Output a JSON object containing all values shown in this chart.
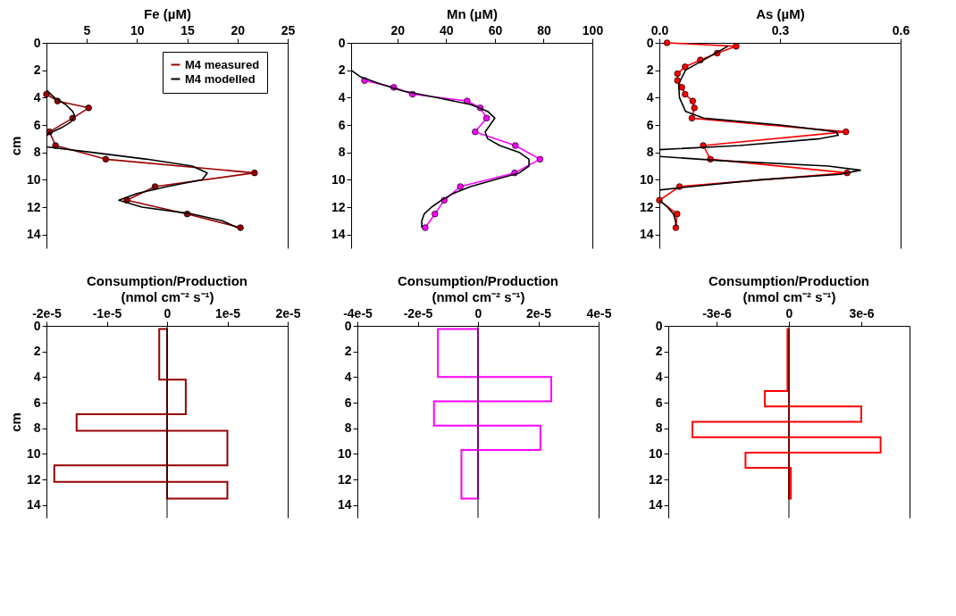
{
  "chart_data": [
    {
      "type": "line",
      "xlabel": "Fe (µM)",
      "ylabel": "cm",
      "xlim": [
        1,
        25
      ],
      "xticks": [
        5,
        10,
        15,
        20,
        25
      ],
      "ylim": [
        15,
        0
      ],
      "yticks": [
        0,
        2,
        4,
        6,
        8,
        10,
        12,
        14
      ],
      "grid": false,
      "legend": "top right",
      "series": [
        {
          "name": "M4 measured",
          "color": "#990000",
          "marker": "circle",
          "x": [
            1.0,
            2.1,
            5.2,
            3.6,
            1.3,
            1.9,
            6.9,
            21.7,
            11.8,
            9.0,
            15.0,
            20.3
          ],
          "values": [
            3.75,
            4.25,
            4.75,
            5.5,
            6.5,
            7.5,
            8.5,
            9.5,
            10.5,
            11.5,
            12.5,
            13.5
          ]
        },
        {
          "name": "M4 modelled",
          "color": "#000000",
          "marker": "none",
          "x": [
            1.0,
            1.8,
            2.9,
            3.6,
            3.8,
            3.4,
            2.5,
            1.3,
            1.0,
            null,
            1.0,
            5.5,
            11,
            15.5,
            17.0,
            16.5,
            13.0,
            10.0,
            8.2,
            10.5,
            15.5,
            18.5,
            20.0
          ],
          "values": [
            3.45,
            4.0,
            4.5,
            5.0,
            5.3,
            5.8,
            6.2,
            6.6,
            6.8,
            null,
            7.6,
            8.0,
            8.5,
            9.0,
            9.5,
            10.0,
            10.5,
            11.0,
            11.5,
            12.0,
            12.5,
            13.0,
            13.5
          ]
        }
      ]
    },
    {
      "type": "line",
      "xlabel": "Mn (µM)",
      "xlim": [
        1,
        100
      ],
      "xticks": [
        20,
        40,
        60,
        80,
        100
      ],
      "ylim": [
        15,
        0
      ],
      "yticks": [
        0,
        2,
        4,
        6,
        8,
        10,
        12,
        14
      ],
      "grid": false,
      "series": [
        {
          "color": "#ff00ff",
          "marker": "circle",
          "x": [
            6.5,
            18.5,
            26.2,
            48.6,
            54,
            56.6,
            51.9,
            68.4,
            78.5,
            68.1,
            45.8,
            39.2,
            35.4,
            31.4
          ],
          "values": [
            2.75,
            3.25,
            3.75,
            4.25,
            4.75,
            5.5,
            6.5,
            7.5,
            8.5,
            9.5,
            10.5,
            11.5,
            12.5,
            13.5
          ]
        },
        {
          "color": "#000000",
          "marker": "none",
          "x": [
            1,
            5,
            13,
            22,
            36,
            50,
            57,
            60,
            58,
            56,
            57,
            62,
            70,
            74,
            74,
            70,
            60,
            50,
            43,
            38,
            34,
            31,
            30,
            30
          ],
          "values": [
            2.0,
            2.5,
            3.0,
            3.5,
            4.0,
            4.5,
            5.0,
            5.5,
            6.0,
            6.5,
            7.0,
            7.5,
            8.0,
            8.5,
            9.0,
            9.5,
            10.0,
            10.5,
            11.0,
            11.5,
            12.0,
            12.5,
            13.0,
            13.5
          ]
        }
      ]
    },
    {
      "type": "line",
      "xlabel": "As (µM)",
      "xlim": [
        0,
        0.6
      ],
      "xticks": [
        {
          "value": 0,
          "label": "0.0"
        },
        {
          "value": 0.3,
          "label": "0.3"
        },
        {
          "value": 0.6,
          "label": "0.6"
        }
      ],
      "ylim": [
        15,
        0
      ],
      "yticks": [
        0,
        2,
        4,
        6,
        8,
        10,
        12,
        14
      ],
      "grid": false,
      "series": [
        {
          "color": "#ff0000",
          "marker": "circle",
          "x": [
            0.019,
            0.191,
            0.144,
            0.102,
            0.064,
            0.045,
            0.045,
            0.056,
            0.064,
            0.083,
            0.087,
            0.081,
            0.464,
            0.109,
            0.127,
            0.467,
            0.05,
            0.0,
            0.044,
            0.041
          ],
          "values": [
            0,
            0.25,
            0.75,
            1.25,
            1.75,
            2.25,
            2.75,
            3.25,
            3.75,
            4.25,
            4.75,
            5.5,
            6.5,
            7.5,
            8.5,
            9.5,
            10.5,
            11.5,
            12.5,
            13.5
          ]
        },
        {
          "color": "#000000",
          "marker": "none",
          "x": [
            0.17,
            0.14,
            0.11,
            0.065,
            0.048,
            0.05,
            0.065,
            0.11,
            0.3,
            0.44,
            0.445,
            0.4,
            0.2,
            0.0,
            null,
            0.0,
            0.15,
            0.42,
            0.5,
            0.45,
            0.25,
            0.08,
            0.0,
            null,
            0.0,
            0.02,
            0.035,
            0.04,
            0.042
          ],
          "values": [
            0.25,
            0.75,
            1.25,
            2.0,
            3.0,
            4.0,
            5.0,
            5.5,
            6.0,
            6.5,
            6.75,
            7.0,
            7.5,
            7.8,
            null,
            8.3,
            8.6,
            9.0,
            9.3,
            9.6,
            10.0,
            10.5,
            10.75,
            null,
            11.5,
            12.0,
            12.5,
            13.0,
            13.4
          ]
        }
      ]
    },
    {
      "type": "histogram",
      "orientation": "horizontal",
      "title": "Consumption/Production",
      "xlabel": "(nmol cm⁻² s⁻¹)",
      "ylabel": "cm",
      "color": "#990000",
      "xlim": [
        -2e-05,
        2e-05
      ],
      "xticks": [
        {
          "value": -2e-05,
          "label": "-2e-5"
        },
        {
          "value": -1e-05,
          "label": "-1e-5"
        },
        {
          "value": 0,
          "label": "0"
        },
        {
          "value": 1e-05,
          "label": "1e-5"
        },
        {
          "value": 2e-05,
          "label": "2e-5"
        }
      ],
      "ylim": [
        15,
        0
      ],
      "yticks": [
        0,
        2,
        4,
        6,
        8,
        10,
        12,
        14
      ],
      "grid": false,
      "bins": [
        0.25,
        4.2,
        6.9,
        8.2,
        10.9,
        12.2,
        13.5
      ],
      "values": [
        -1.3e-06,
        3.1e-06,
        -1.5e-05,
        1e-05,
        -1.87e-05,
        1e-05
      ],
      "ref_lines": [
        {
          "axis": "x",
          "value": 0,
          "color": "#000000"
        }
      ]
    },
    {
      "type": "histogram",
      "orientation": "horizontal",
      "title": "Consumption/Production",
      "xlabel": "(nmol cm⁻² s⁻¹)",
      "color": "#ff00ff",
      "xlim": [
        -4e-05,
        4e-05
      ],
      "xticks": [
        {
          "value": -4e-05,
          "label": "-4e-5"
        },
        {
          "value": -2e-05,
          "label": "-2e-5"
        },
        {
          "value": 0,
          "label": "0"
        },
        {
          "value": 2e-05,
          "label": "2e-5"
        },
        {
          "value": 4e-05,
          "label": "4e-5"
        }
      ],
      "ylim": [
        15,
        0
      ],
      "yticks": [
        0,
        2,
        4,
        6,
        8,
        10,
        12,
        14
      ],
      "grid": false,
      "bins": [
        0.25,
        4.0,
        5.9,
        7.8,
        9.7,
        13.5
      ],
      "values": [
        -1.33e-05,
        2.43e-05,
        -1.46e-05,
        2.07e-05,
        -5.5e-06
      ],
      "ref_lines": [
        {
          "axis": "x",
          "value": 0,
          "color": "#000000"
        }
      ]
    },
    {
      "type": "histogram",
      "orientation": "horizontal",
      "title": "Consumption/Production",
      "xlabel": "(nmol cm⁻² s⁻¹)",
      "color": "#ff0000",
      "xlim": [
        -5e-06,
        5e-06
      ],
      "xticks": [
        {
          "value": -3e-06,
          "label": "-3e-6"
        },
        {
          "value": 0,
          "label": "0"
        },
        {
          "value": 3e-06,
          "label": "3e-6"
        }
      ],
      "ylim": [
        15,
        0
      ],
      "yticks": [
        0,
        2,
        4,
        6,
        8,
        10,
        12,
        14
      ],
      "grid": false,
      "bins": [
        0.25,
        5.1,
        6.3,
        7.5,
        8.7,
        9.9,
        11.1,
        13.5
      ],
      "values": [
        -6e-08,
        -1e-06,
        3e-06,
        -4e-06,
        3.8e-06,
        -1.8e-06,
        8e-08
      ],
      "ref_lines": [
        {
          "axis": "x",
          "value": 0,
          "color": "#000000"
        }
      ]
    }
  ]
}
